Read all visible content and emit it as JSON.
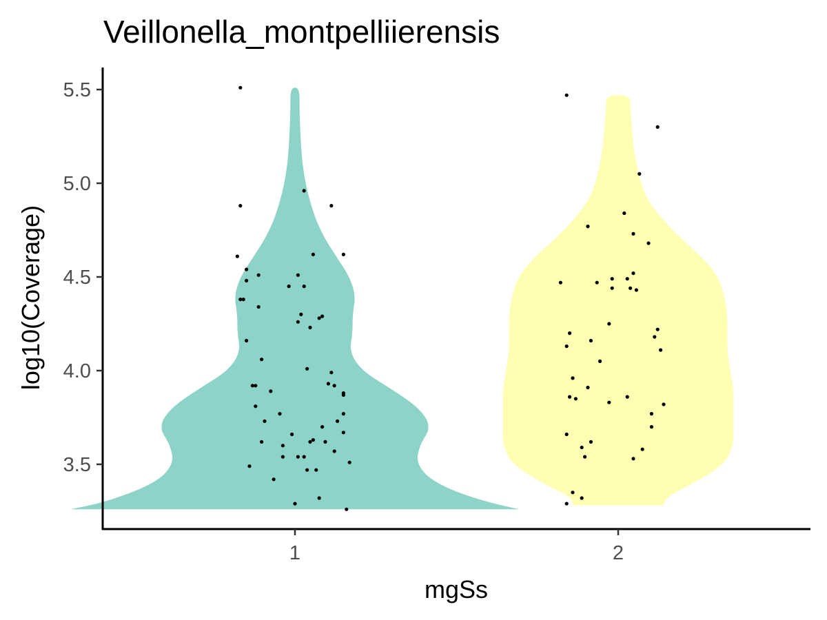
{
  "chart_data": {
    "type": "violin",
    "title": "Veillonella_montpelliierensis",
    "xlabel": "mgSs",
    "ylabel": "log10(Coverage)",
    "categories": [
      "1",
      "2"
    ],
    "yticks": [
      "3.5",
      "4.0",
      "4.5",
      "5.0",
      "5.5"
    ],
    "ylim": [
      3.2,
      5.6
    ],
    "grid": false,
    "legend": "none",
    "colors": {
      "1": "#8dd3c7",
      "2": "#ffffb3",
      "points": "#000000"
    },
    "violins": [
      {
        "category": "1",
        "y_min": 3.26,
        "y_max": 5.51,
        "density_profile": [
          [
            3.26,
            0.74
          ],
          [
            3.3,
            0.62
          ],
          [
            3.4,
            0.46
          ],
          [
            3.5,
            0.4
          ],
          [
            3.6,
            0.41
          ],
          [
            3.7,
            0.45
          ],
          [
            3.8,
            0.41
          ],
          [
            3.9,
            0.32
          ],
          [
            4.0,
            0.22
          ],
          [
            4.1,
            0.18
          ],
          [
            4.2,
            0.19
          ],
          [
            4.3,
            0.19
          ],
          [
            4.4,
            0.2
          ],
          [
            4.5,
            0.18
          ],
          [
            4.6,
            0.14
          ],
          [
            4.7,
            0.1
          ],
          [
            4.8,
            0.07
          ],
          [
            4.9,
            0.05
          ],
          [
            5.0,
            0.035
          ],
          [
            5.1,
            0.025
          ],
          [
            5.2,
            0.02
          ],
          [
            5.3,
            0.017
          ],
          [
            5.4,
            0.015
          ],
          [
            5.51,
            0.015
          ]
        ],
        "points": [
          [
            -0.18,
            5.51
          ],
          [
            -0.18,
            4.88
          ],
          [
            0.03,
            4.96
          ],
          [
            -0.19,
            4.61
          ],
          [
            -0.16,
            4.54
          ],
          [
            -0.16,
            4.48
          ],
          [
            -0.12,
            4.51
          ],
          [
            0.01,
            4.51
          ],
          [
            0.12,
            4.88
          ],
          [
            0.06,
            4.62
          ],
          [
            0.16,
            4.62
          ],
          [
            -0.18,
            4.38
          ],
          [
            -0.17,
            4.38
          ],
          [
            -0.12,
            4.34
          ],
          [
            -0.02,
            4.45
          ],
          [
            0.02,
            4.3
          ],
          [
            0.09,
            4.29
          ],
          [
            0.01,
            4.26
          ],
          [
            0.05,
            4.23
          ],
          [
            0.08,
            4.28
          ],
          [
            -0.16,
            4.16
          ],
          [
            -0.11,
            4.06
          ],
          [
            0.04,
            4.01
          ],
          [
            0.12,
            3.99
          ],
          [
            -0.14,
            3.92
          ],
          [
            -0.13,
            3.92
          ],
          [
            -0.08,
            3.89
          ],
          [
            0.11,
            3.93
          ],
          [
            0.13,
            3.92
          ],
          [
            0.16,
            3.88
          ],
          [
            0.16,
            3.87
          ],
          [
            -0.13,
            3.81
          ],
          [
            -0.05,
            3.77
          ],
          [
            0.16,
            3.77
          ],
          [
            -0.1,
            3.73
          ],
          [
            0.14,
            3.73
          ],
          [
            0.09,
            3.7
          ],
          [
            0.16,
            3.67
          ],
          [
            -0.11,
            3.62
          ],
          [
            -0.04,
            3.6
          ],
          [
            -0.01,
            3.66
          ],
          [
            0.05,
            3.62
          ],
          [
            0.06,
            3.63
          ],
          [
            0.1,
            3.62
          ],
          [
            0.13,
            3.57
          ],
          [
            -0.04,
            3.54
          ],
          [
            0.01,
            3.54
          ],
          [
            0.03,
            3.54
          ],
          [
            0.04,
            3.47
          ],
          [
            0.18,
            3.51
          ],
          [
            -0.15,
            3.49
          ],
          [
            0.07,
            3.47
          ],
          [
            -0.07,
            3.42
          ],
          [
            0.08,
            3.32
          ],
          [
            0.0,
            3.29
          ],
          [
            0.17,
            3.26
          ],
          [
            0.03,
            4.45
          ]
        ]
      },
      {
        "category": "2",
        "y_min": 3.28,
        "y_max": 5.47,
        "density_profile": [
          [
            3.28,
            0.15
          ],
          [
            3.32,
            0.15
          ],
          [
            3.4,
            0.25
          ],
          [
            3.5,
            0.35
          ],
          [
            3.6,
            0.38
          ],
          [
            3.7,
            0.38
          ],
          [
            3.8,
            0.38
          ],
          [
            3.9,
            0.38
          ],
          [
            4.0,
            0.37
          ],
          [
            4.1,
            0.36
          ],
          [
            4.2,
            0.36
          ],
          [
            4.3,
            0.36
          ],
          [
            4.4,
            0.35
          ],
          [
            4.5,
            0.33
          ],
          [
            4.6,
            0.28
          ],
          [
            4.7,
            0.21
          ],
          [
            4.8,
            0.15
          ],
          [
            4.9,
            0.1
          ],
          [
            5.0,
            0.075
          ],
          [
            5.1,
            0.06
          ],
          [
            5.2,
            0.05
          ],
          [
            5.3,
            0.045
          ],
          [
            5.4,
            0.04
          ],
          [
            5.47,
            0.04
          ]
        ],
        "points": [
          [
            -0.17,
            5.47
          ],
          [
            0.13,
            5.3
          ],
          [
            0.07,
            5.05
          ],
          [
            0.02,
            4.84
          ],
          [
            -0.1,
            4.77
          ],
          [
            0.1,
            4.68
          ],
          [
            0.05,
            4.73
          ],
          [
            -0.07,
            4.47
          ],
          [
            -0.19,
            4.47
          ],
          [
            0.03,
            4.49
          ],
          [
            0.05,
            4.52
          ],
          [
            0.04,
            4.44
          ],
          [
            0.06,
            4.43
          ],
          [
            -0.02,
            4.44
          ],
          [
            -0.02,
            4.49
          ],
          [
            -0.03,
            4.25
          ],
          [
            0.13,
            4.22
          ],
          [
            0.14,
            4.11
          ],
          [
            -0.17,
            4.13
          ],
          [
            0.12,
            4.18
          ],
          [
            -0.16,
            4.2
          ],
          [
            -0.09,
            4.16
          ],
          [
            -0.06,
            4.05
          ],
          [
            -0.15,
            3.96
          ],
          [
            -0.1,
            3.91
          ],
          [
            -0.16,
            3.86
          ],
          [
            -0.14,
            3.85
          ],
          [
            -0.03,
            3.83
          ],
          [
            0.03,
            3.86
          ],
          [
            0.15,
            3.82
          ],
          [
            0.11,
            3.77
          ],
          [
            0.11,
            3.7
          ],
          [
            -0.17,
            3.66
          ],
          [
            -0.09,
            3.62
          ],
          [
            -0.12,
            3.59
          ],
          [
            -0.11,
            3.54
          ],
          [
            0.08,
            3.58
          ],
          [
            0.05,
            3.53
          ],
          [
            -0.15,
            3.35
          ],
          [
            -0.12,
            3.32
          ],
          [
            -0.17,
            3.29
          ]
        ]
      }
    ]
  }
}
